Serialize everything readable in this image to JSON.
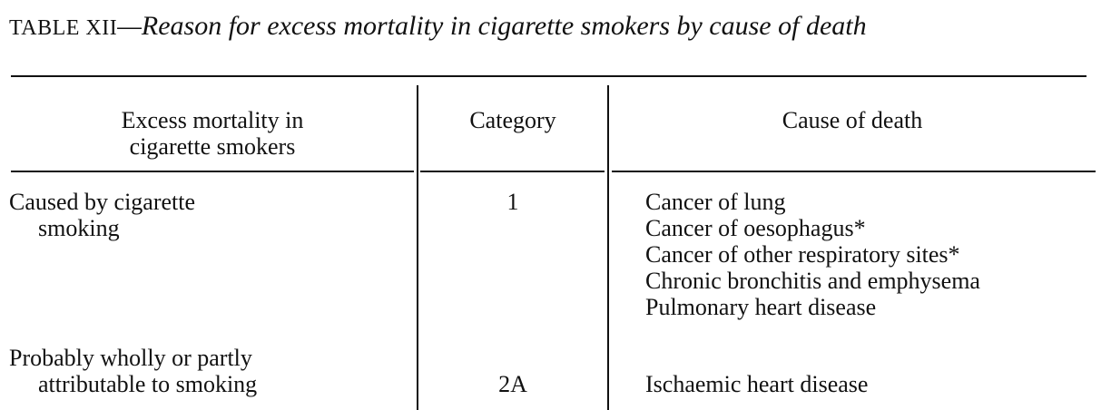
{
  "table": {
    "label": "TABLE XII",
    "caption": "—Reason for excess mortality in cigarette smokers by cause of death",
    "headers": {
      "excess_line1": "Excess mortality in",
      "excess_line2": "cigarette smokers",
      "category": "Category",
      "cause": "Cause of death"
    },
    "rows": [
      {
        "excess_line1": "Caused by cigarette",
        "excess_line2": "smoking",
        "category": "1",
        "causes": [
          "Cancer of lung",
          "Cancer of oesophagus*",
          "Cancer of other respiratory sites*",
          "Chronic bronchitis and emphysema",
          "Pulmonary heart disease"
        ]
      },
      {
        "excess_line1": "Probably wholly or partly",
        "excess_line2": "attributable to smoking",
        "category": "2A",
        "causes": [
          "Ischaemic heart disease"
        ]
      }
    ]
  }
}
